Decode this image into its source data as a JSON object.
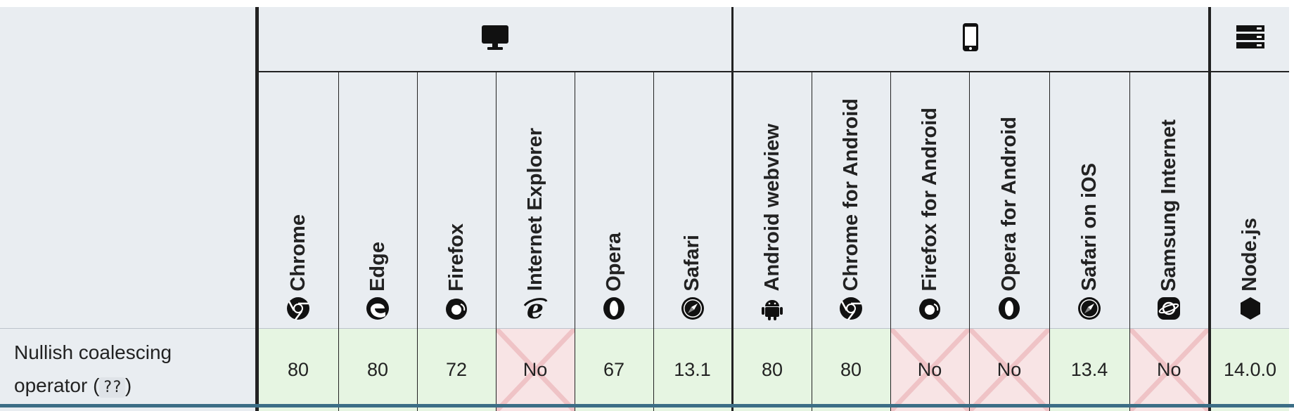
{
  "platforms": [
    {
      "icon": "desktop-icon"
    },
    {
      "icon": "mobile-icon"
    },
    {
      "icon": "server-icon"
    }
  ],
  "browsers": [
    {
      "name": "Chrome",
      "icon": "chrome-icon"
    },
    {
      "name": "Edge",
      "icon": "edge-icon"
    },
    {
      "name": "Firefox",
      "icon": "firefox-icon"
    },
    {
      "name": "Internet Explorer",
      "icon": "internet-explorer-icon"
    },
    {
      "name": "Opera",
      "icon": "opera-icon"
    },
    {
      "name": "Safari",
      "icon": "safari-icon"
    },
    {
      "name": "Android webview",
      "icon": "android-icon"
    },
    {
      "name": "Chrome for Android",
      "icon": "chrome-icon"
    },
    {
      "name": "Firefox for Android",
      "icon": "firefox-icon"
    },
    {
      "name": "Opera for Android",
      "icon": "opera-icon"
    },
    {
      "name": "Safari on iOS",
      "icon": "safari-icon"
    },
    {
      "name": "Samsung Internet",
      "icon": "samsung-internet-icon"
    },
    {
      "name": "Node.js",
      "icon": "nodejs-icon"
    }
  ],
  "feature": {
    "label_before": "Nullish coalescing operator (",
    "code": "??",
    "label_after": ")"
  },
  "support": [
    {
      "value": "80",
      "supported": true
    },
    {
      "value": "80",
      "supported": true
    },
    {
      "value": "72",
      "supported": true
    },
    {
      "value": "No",
      "supported": false
    },
    {
      "value": "67",
      "supported": true
    },
    {
      "value": "13.1",
      "supported": true
    },
    {
      "value": "80",
      "supported": true
    },
    {
      "value": "80",
      "supported": true
    },
    {
      "value": "No",
      "supported": false
    },
    {
      "value": "No",
      "supported": false
    },
    {
      "value": "13.4",
      "supported": true
    },
    {
      "value": "No",
      "supported": false
    },
    {
      "value": "14.0.0",
      "supported": true
    }
  ],
  "colors": {
    "supported_bg": "#e6f5e2",
    "unsupported_bg": "#f8e4e5",
    "unsupported_x": "#efc3c6",
    "header_bg": "#e9edf1",
    "accent_bar": "#3c6e86"
  }
}
